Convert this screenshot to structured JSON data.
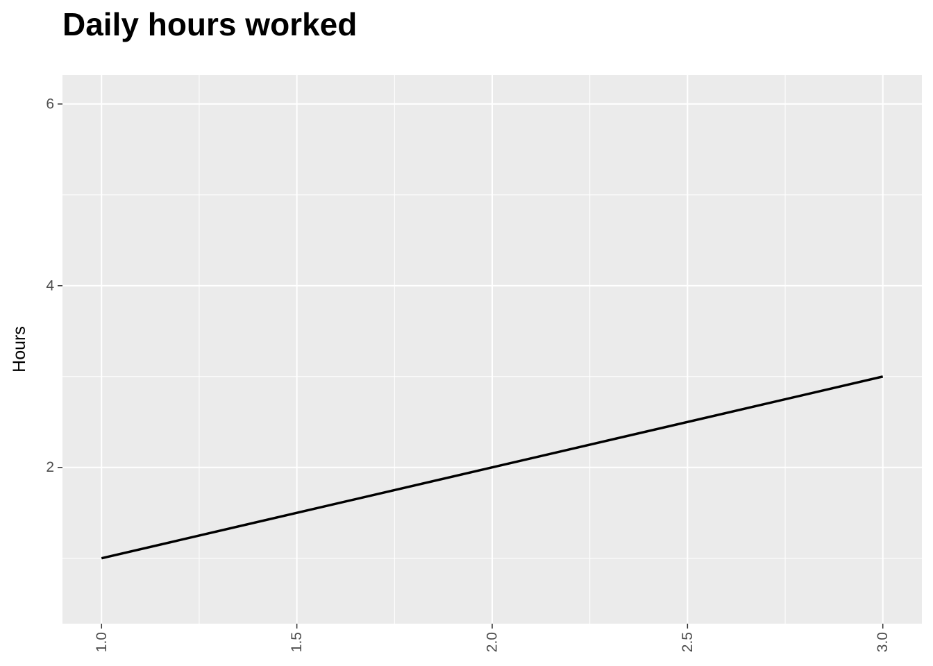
{
  "chart_data": {
    "type": "line",
    "title": "Daily hours worked",
    "xlabel": "",
    "ylabel": "Hours",
    "x": [
      1,
      2,
      3
    ],
    "series": [
      {
        "values": [
          1,
          2,
          3
        ],
        "color": "#000000"
      }
    ],
    "xlim": [
      0.9,
      3.1
    ],
    "ylim": [
      0.28,
      6.32
    ],
    "x_ticks": [
      1.0,
      1.5,
      2.0,
      2.5,
      3.0
    ],
    "x_tick_labels": [
      "1.0",
      "1.5",
      "2.0",
      "2.5",
      "3.0"
    ],
    "x_minor_ticks": [
      1.25,
      1.75,
      2.25,
      2.75
    ],
    "y_ticks": [
      2,
      4,
      6
    ],
    "y_tick_labels": [
      "2",
      "4",
      "6"
    ],
    "y_minor_ticks": [
      1,
      3,
      5
    ],
    "grid": true,
    "legend": "none",
    "panel_color": "#ebebeb",
    "grid_color": "#ffffff"
  }
}
